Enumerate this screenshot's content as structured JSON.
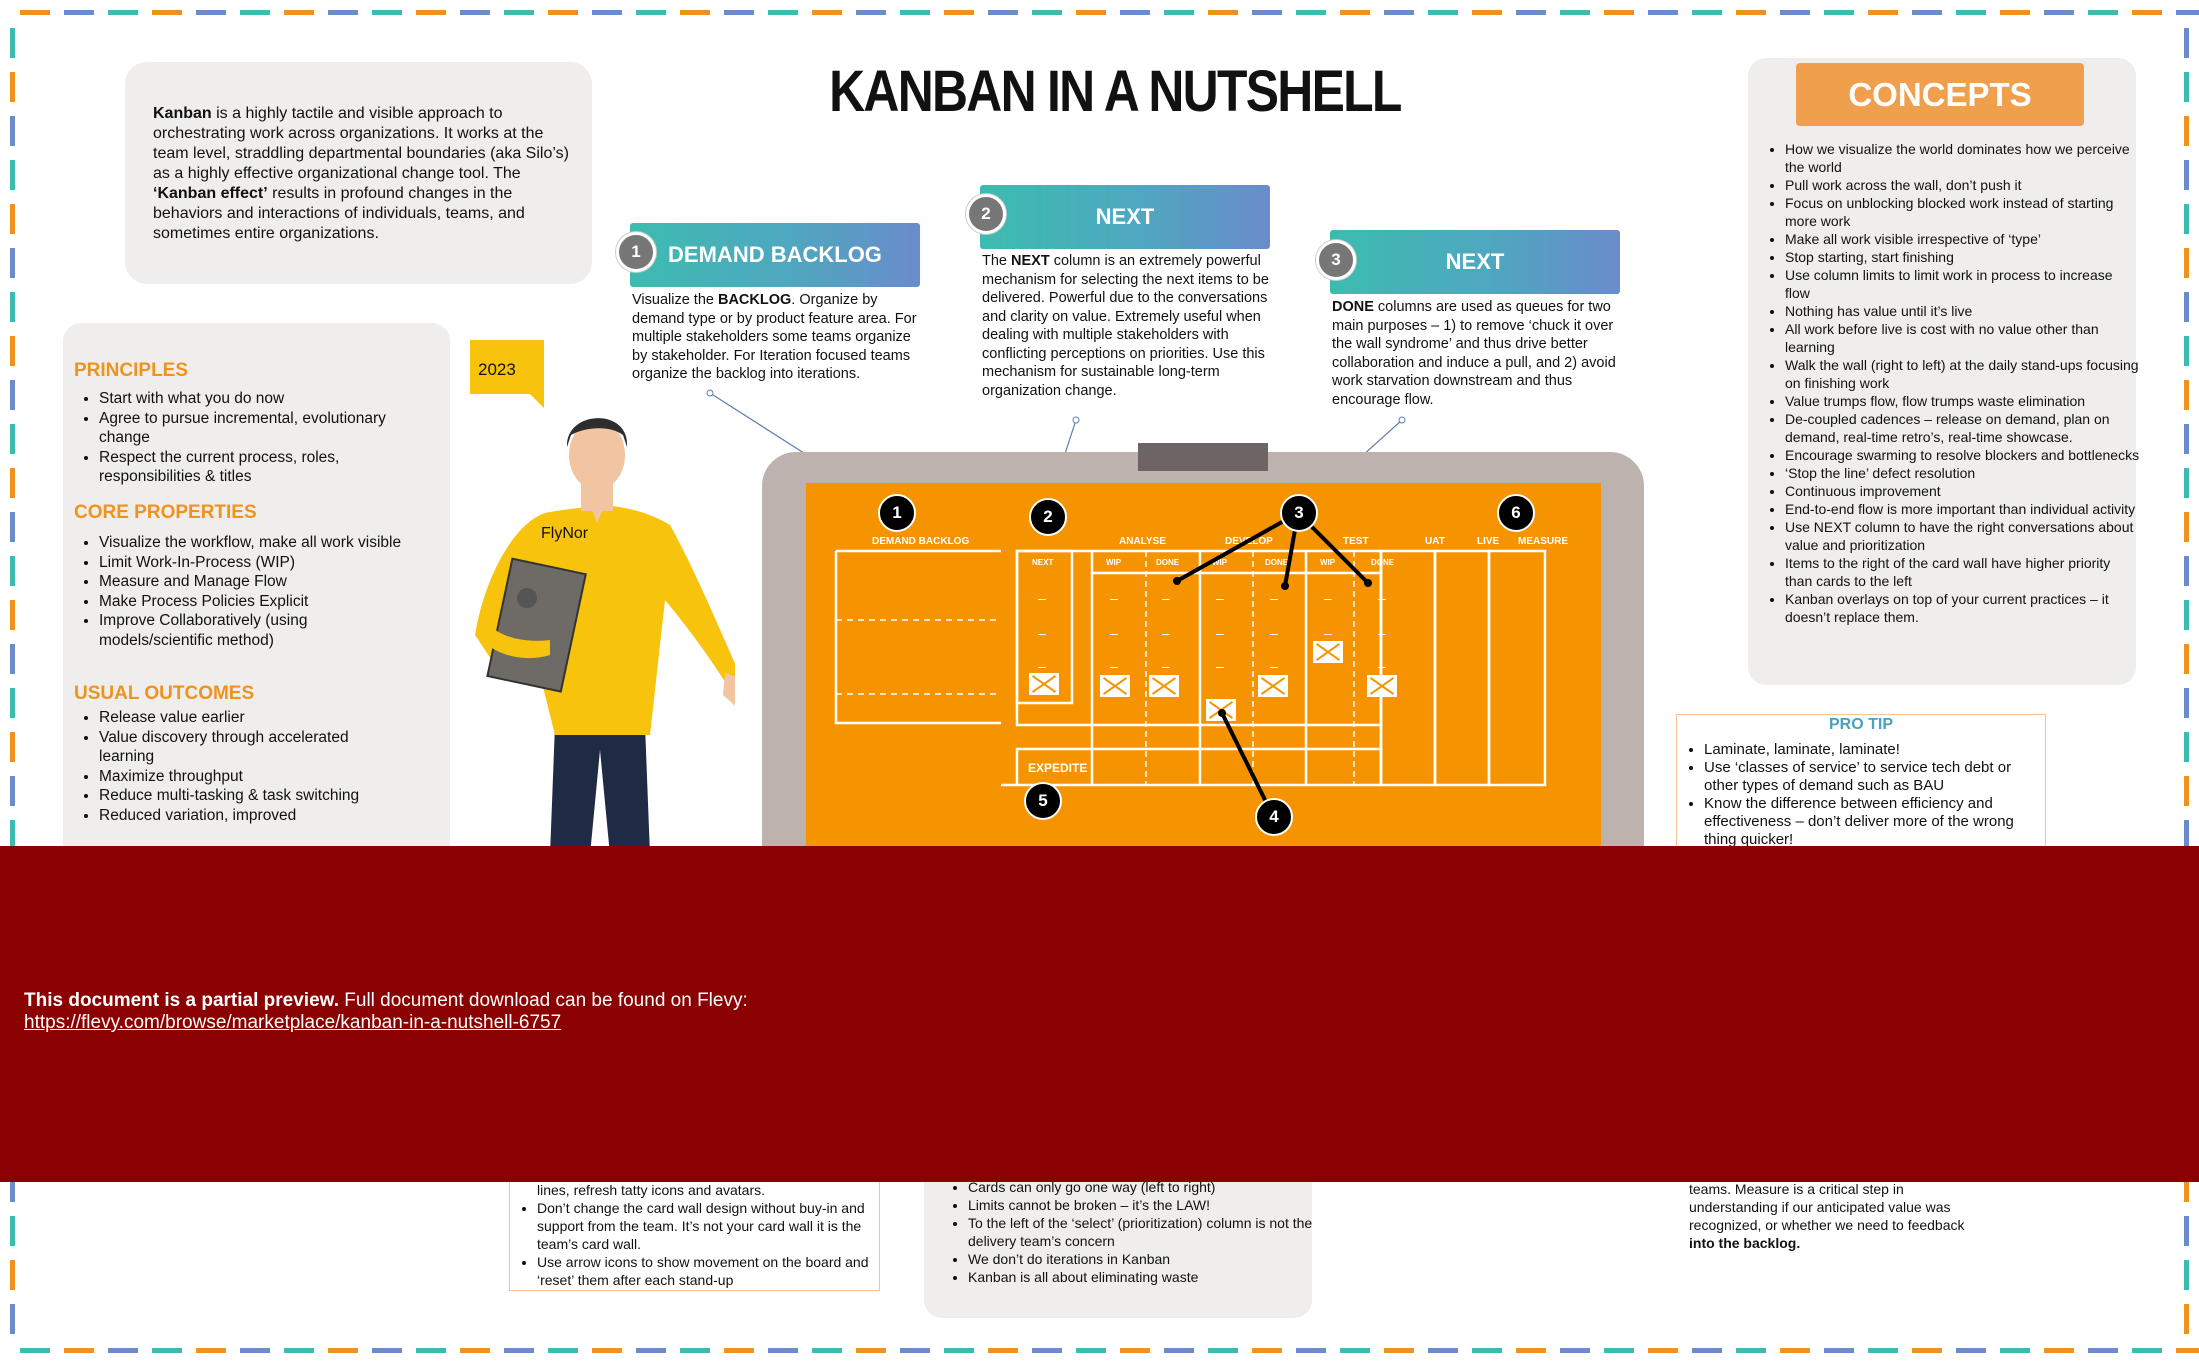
{
  "title": "KANBAN IN A NUTSHELL",
  "intro": {
    "term": "Kanban",
    "text_1": " is a highly tactile and visible approach to orchestrating work across  organizations. It works at the team level, straddling departmental boundaries (aka Silo’s) as a highly effective organizational change tool. The ",
    "effect": "‘Kanban effect’",
    "text_2": " results in  profound changes in the behaviors and interactions of individuals, teams, and sometimes entire organizations."
  },
  "principles": {
    "heading": "PRINCIPLES",
    "items": [
      "Start with what you do now",
      "Agree to pursue incremental, evolutionary change",
      "Respect the current process, roles, responsibilities & titles"
    ]
  },
  "core_properties": {
    "heading": "CORE PROPERTIES",
    "items": [
      "Visualize the workflow, make all work visible",
      "Limit Work-In-Process (WIP)",
      "Measure and Manage Flow",
      "Make Process Policies Explicit",
      "Improve Collaboratively (using models/scientific method)"
    ]
  },
  "usual_outcomes": {
    "heading": "USUAL OUTCOMES",
    "items": [
      "Release value earlier",
      "Value discovery through accelerated learning",
      "Maximize throughput",
      "Reduce multi-tasking & task switching",
      "Reduced variation, improved"
    ]
  },
  "year_badge": "2023",
  "shirt_text": "FlyNor",
  "steps": [
    {
      "num": "1",
      "label": "DEMAND BACKLOG",
      "desc_1": "Visualize the ",
      "desc_bold": "BACKLOG",
      "desc_2": ". Organize by demand  type or by product feature area.  For multiple  stakeholders some teams organize by  stakeholder. For Iteration focused teams  organize the backlog into iterations."
    },
    {
      "num": "2",
      "label": "NEXT",
      "desc_1": "The ",
      "desc_bold": "NEXT",
      "desc_2": " column is an extremely powerful  mechanism for selecting the next items to be  delivered. Powerful due to the conversations  and clarity on value. Extremely useful when  dealing with multiple stakeholders with  conflicting perceptions on priorities. Use this mechanism for sustainable long-term organization change."
    },
    {
      "num": "3",
      "label": "NEXT",
      "desc_1": "",
      "desc_bold": "DONE",
      "desc_2": " columns are used as queues for two main purposes – 1) to remove ‘chuck it over the  wall syndrome’ and thus drive better  collaboration and induce a pull, and 2) avoid  work starvation downstream and thus  encourage flow."
    }
  ],
  "board": {
    "columns": [
      "DEMAND BACKLOG",
      "ANALYSE",
      "DEVELOP",
      "TEST",
      "UAT",
      "LIVE",
      "MEASURE"
    ],
    "sub_next": "NEXT",
    "sub_wip": "WIP",
    "sub_done": "DONE",
    "expedite": "EXPEDITE",
    "markers": [
      "1",
      "2",
      "3",
      "4",
      "5",
      "6"
    ]
  },
  "concepts": {
    "heading": "CONCEPTS",
    "items": [
      "How we visualize the world dominates how we perceive the world",
      "Pull work across the wall, don’t push it",
      "Focus on unblocking blocked work instead of starting more work",
      "Make all work visible irrespective of ‘type’",
      "Stop starting, start finishing",
      "Use column limits to limit work in process to  increase flow",
      "Nothing has value until it’s live",
      "All work before live is cost with no value other than learning",
      "Walk the wall (right to left) at the daily stand-ups focusing on finishing work",
      "Value trumps flow, flow trumps waste elimination",
      "De-coupled cadences – release on demand, plan on demand, real-time retro’s, real-time showcase.",
      "Encourage swarming to resolve blockers and bottlenecks",
      "‘Stop the line’ defect resolution",
      "Continuous improvement",
      "End-to-end flow is more important than individual activity",
      "Use NEXT column to have the right conversations  about value and prioritization",
      "Items to the right of the card wall have higher priority than cards to the left",
      "Kanban overlays on top of your current practices – it doesn’t replace them."
    ]
  },
  "pro_tip": {
    "heading": "PRO  TIP",
    "items": [
      "Laminate, laminate, laminate!",
      "Use ‘classes of service’ to service tech debt or other types of demand such as BAU",
      "Know the difference between efficiency and effectiveness – don’t deliver more of the wrong thing quicker!"
    ]
  },
  "bottom_left": {
    "items": [
      "lines, refresh tatty icons and avatars.",
      "Don’t change the card wall design without  buy-in and support from the team. It’s not your card wall it is the team’s card wall.",
      "Use arrow icons to show movement on the board and ‘reset’ them after each stand-up"
    ]
  },
  "bottom_mid": {
    "items": [
      "Cards can only go one way (left to right)",
      "Limits cannot be broken – it’s the LAW!",
      "To the left of the ‘select’ (prioritization) column is not the delivery team’s concern",
      "We don’t do iterations in Kanban",
      "Kanban is all about eliminating waste"
    ]
  },
  "bottom_right": {
    "text": "teams. Measure is a critical step in understanding if our anticipated value was  recognized, or whether we need to feedback ",
    "bold": "into the backlog."
  },
  "preview": {
    "bold": "This document is a partial preview.",
    "text": "  Full document download can be found on Flevy:",
    "url": "https://flevy.com/browse/marketplace/kanban-in-a-nutshell-6757"
  },
  "colors": {
    "orange": "#f59400",
    "accent": "#f0931e",
    "overlay": "#8b0000",
    "teal": "#3cbcb0"
  }
}
